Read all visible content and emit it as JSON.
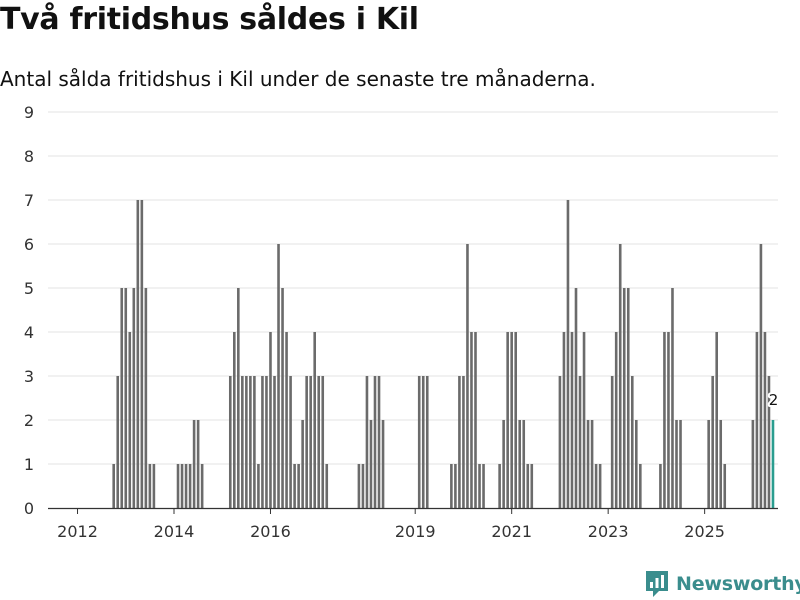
{
  "chart_data": {
    "type": "bar",
    "title": "Två fritidshus såldes i Kil",
    "subtitle": "Antal sålda fritidshus i Kil under de senaste tre månaderna.",
    "xlabel": "",
    "ylabel": "",
    "ylim": [
      0,
      9
    ],
    "yticks": [
      0,
      1,
      2,
      3,
      4,
      5,
      6,
      7,
      8,
      9
    ],
    "xticks": [
      {
        "label": "2012",
        "index": 1
      },
      {
        "label": "2014",
        "index": 25
      },
      {
        "label": "2016",
        "index": 49
      },
      {
        "label": "2019",
        "index": 85
      },
      {
        "label": "2021",
        "index": 109
      },
      {
        "label": "2023",
        "index": 133
      },
      {
        "label": "2025",
        "index": 157
      }
    ],
    "values": [
      0,
      0,
      0,
      0,
      0,
      0,
      0,
      0,
      0,
      0,
      1,
      3,
      5,
      5,
      4,
      5,
      7,
      7,
      5,
      1,
      1,
      0,
      0,
      0,
      0,
      0,
      1,
      1,
      1,
      1,
      2,
      2,
      1,
      0,
      0,
      0,
      0,
      0,
      0,
      3,
      4,
      5,
      3,
      3,
      3,
      3,
      1,
      3,
      3,
      4,
      3,
      6,
      5,
      4,
      3,
      1,
      1,
      2,
      3,
      3,
      4,
      3,
      3,
      1,
      0,
      0,
      0,
      0,
      0,
      0,
      0,
      1,
      1,
      3,
      2,
      3,
      3,
      2,
      0,
      0,
      0,
      0,
      0,
      0,
      0,
      0,
      3,
      3,
      3,
      0,
      0,
      0,
      0,
      0,
      1,
      1,
      3,
      3,
      6,
      4,
      4,
      1,
      1,
      0,
      0,
      0,
      1,
      2,
      4,
      4,
      4,
      2,
      2,
      1,
      1,
      0,
      0,
      0,
      0,
      0,
      0,
      3,
      4,
      7,
      4,
      5,
      3,
      4,
      2,
      2,
      1,
      1,
      0,
      0,
      3,
      4,
      6,
      5,
      5,
      3,
      2,
      1,
      0,
      0,
      0,
      0,
      1,
      4,
      4,
      5,
      2,
      2,
      0,
      0,
      0,
      0,
      0,
      0,
      2,
      3,
      4,
      2,
      1,
      0,
      0,
      0,
      0,
      0,
      0,
      2,
      4,
      6,
      4,
      3,
      2
    ],
    "last_value_label": "2",
    "colors": {
      "bar": "#6b6b6b",
      "highlight": "#2a9d8f",
      "grid": "#e3e3e3",
      "axis": "#333333",
      "tick_text": "#333333"
    }
  },
  "brand": {
    "name": "Newsworthy",
    "color": "#3a8d8d"
  }
}
